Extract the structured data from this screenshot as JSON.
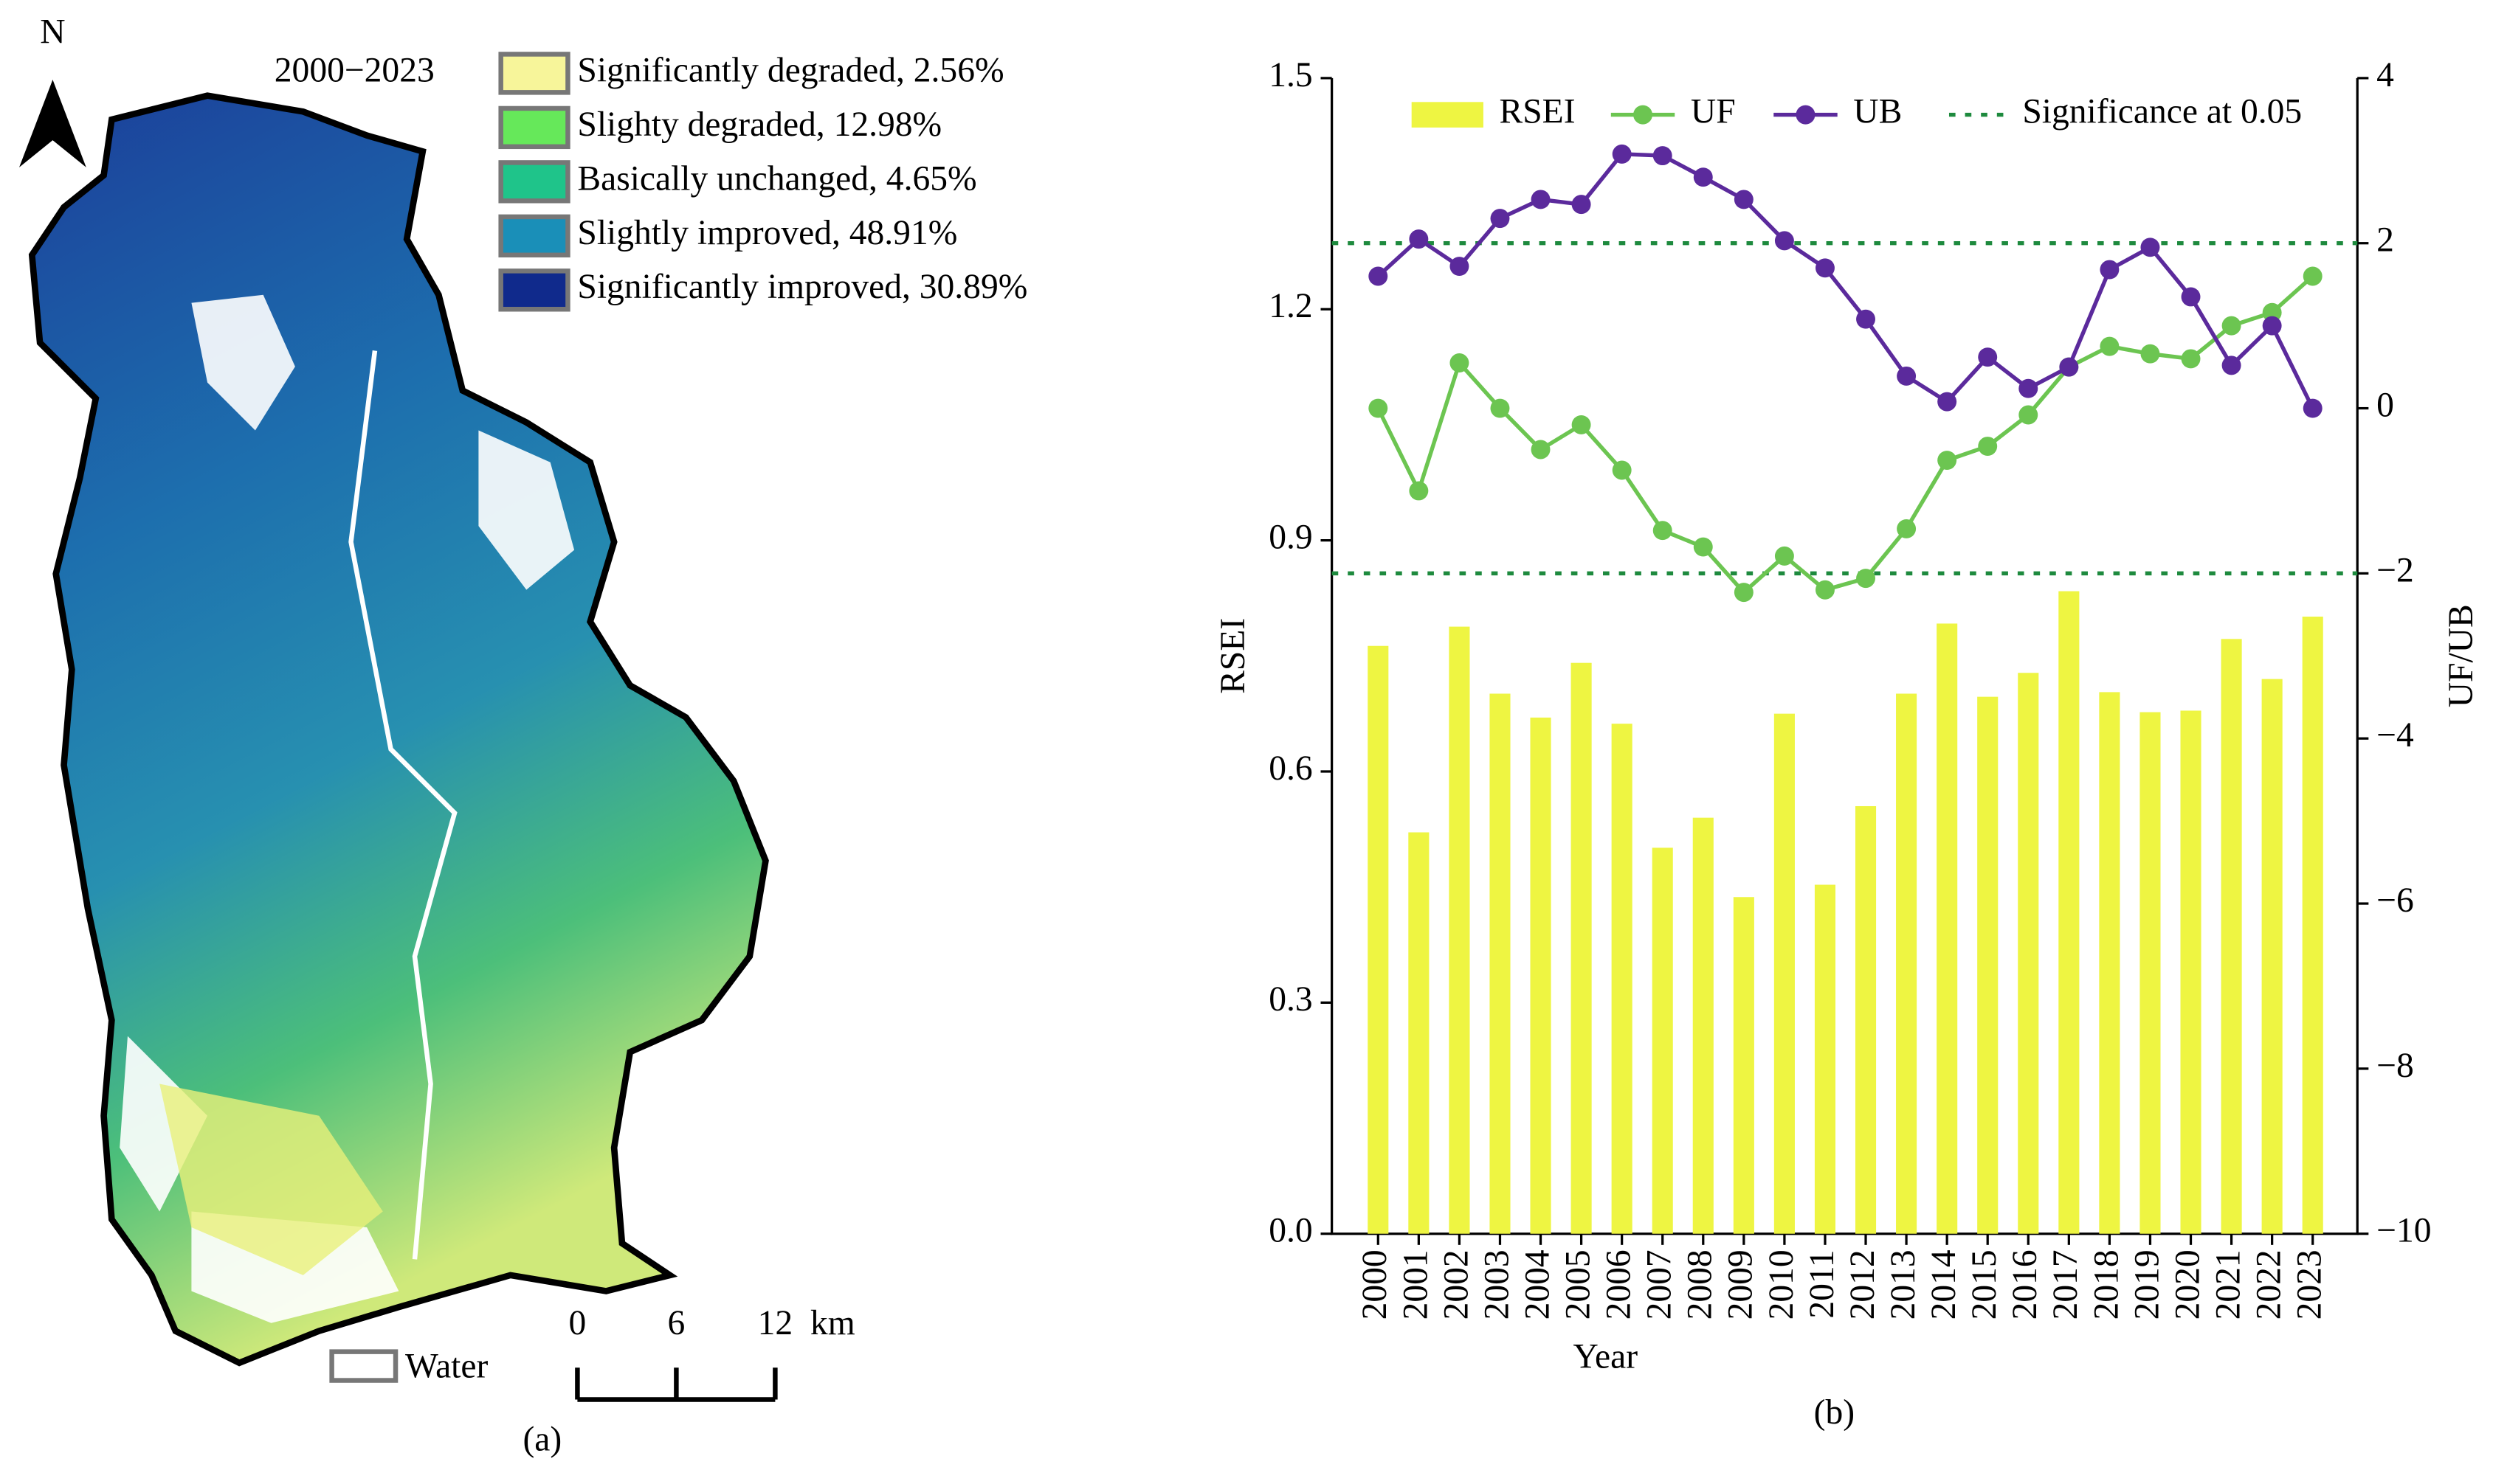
{
  "map": {
    "title": "2000−2023",
    "north": "N",
    "panel_label": "(a)",
    "legend": [
      {
        "label": "Significantly degraded, 2.56%",
        "color": "#f7f59a"
      },
      {
        "label": "Slighty degraded, 12.98%",
        "color": "#66e85a"
      },
      {
        "label": "Basically unchanged, 4.65%",
        "color": "#1fc48a"
      },
      {
        "label": "Slightly improved, 48.91%",
        "color": "#1a8fb8"
      },
      {
        "label": "Significantly improved, 30.89%",
        "color": "#102a8c"
      }
    ],
    "water": "Water",
    "scale_bar": {
      "ticks": [
        0,
        6,
        12
      ],
      "unit": "km"
    }
  },
  "chart_data": {
    "type": "combo",
    "panel_label": "(b)",
    "x_label": "Year",
    "y_label": "RSEI",
    "y2_label": "UF/UB",
    "categories": [
      "2000",
      "2001",
      "2002",
      "2003",
      "2004",
      "2005",
      "2006",
      "2007",
      "2008",
      "2009",
      "2010",
      "2011",
      "2012",
      "2013",
      "2014",
      "2015",
      "2016",
      "2017",
      "2018",
      "2019",
      "2020",
      "2021",
      "2022",
      "2023"
    ],
    "series": [
      {
        "name": "RSEI",
        "type": "bar",
        "axis": "y",
        "color": "#eef542",
        "values": [
          0.763,
          0.521,
          0.788,
          0.701,
          0.67,
          0.741,
          0.662,
          0.501,
          0.54,
          0.437,
          0.675,
          0.453,
          0.555,
          0.701,
          0.792,
          0.697,
          0.728,
          0.834,
          0.703,
          0.677,
          0.679,
          0.772,
          0.72,
          0.801
        ]
      },
      {
        "name": "UF",
        "type": "line",
        "axis": "y2",
        "color": "#6cc551",
        "values": [
          0,
          -1.0,
          0.55,
          0,
          -0.5,
          -0.2,
          -0.75,
          -1.48,
          -1.68,
          -2.23,
          -1.79,
          -2.2,
          -2.06,
          -1.46,
          -0.63,
          -0.46,
          -0.08,
          0.5,
          0.75,
          0.66,
          0.6,
          1.0,
          1.16,
          1.6
        ]
      },
      {
        "name": "UB",
        "type": "line",
        "axis": "y2",
        "color": "#5b2a9c",
        "values": [
          1.6,
          2.05,
          1.72,
          2.3,
          2.53,
          2.47,
          3.08,
          3.06,
          2.8,
          2.53,
          2.03,
          1.7,
          1.08,
          0.39,
          0.08,
          0.62,
          0.24,
          0.5,
          1.68,
          1.95,
          1.35,
          0.52,
          1.0,
          0
        ]
      }
    ],
    "reference_lines": {
      "name": "Significance at 0.05",
      "axis": "y2",
      "color": "#1e8a3e",
      "values": [
        2,
        -2
      ]
    },
    "ylim": [
      0,
      1.5
    ],
    "yticks": [
      {
        "value": 0,
        "label": "0.0"
      },
      0.3,
      0.6,
      0.9,
      1.2,
      1.5
    ],
    "y2lim": [
      -10,
      4
    ],
    "y2ticks": [
      {
        "value": -10,
        "label": "−10"
      },
      {
        "value": -8,
        "label": "−8"
      },
      {
        "value": -6,
        "label": "−6"
      },
      {
        "value": -4,
        "label": "−4"
      },
      {
        "value": -2,
        "label": "−2"
      },
      0,
      2,
      4
    ],
    "legend": "top"
  }
}
